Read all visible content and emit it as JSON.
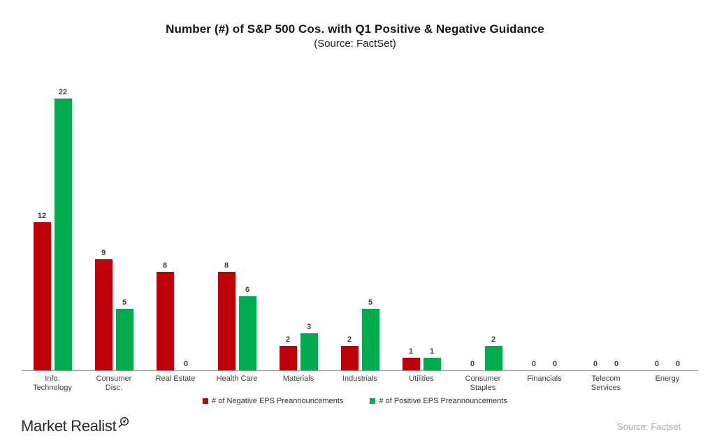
{
  "chart_data": {
    "type": "bar",
    "title": "Number (#) of S&P 500 Cos. with Q1 Positive & Negative Guidance",
    "subtitle": "(Source: FactSet)",
    "categories": [
      "Info. Technology",
      "Consumer Disc.",
      "Real Estate",
      "Health Care",
      "Materials",
      "Industrials",
      "Utilities",
      "Consumer Staples",
      "Financials",
      "Telecom Services",
      "Energy"
    ],
    "series": [
      {
        "name": "# of Negative EPS Preannouncements",
        "color": "#c00008",
        "values": [
          12,
          9,
          8,
          8,
          2,
          2,
          1,
          0,
          0,
          0,
          0
        ]
      },
      {
        "name": "# of Positive EPS Preannouncements",
        "color": "#00ab50",
        "values": [
          22,
          5,
          0,
          6,
          3,
          5,
          1,
          2,
          0,
          0,
          0
        ]
      }
    ],
    "ylim": [
      0,
      22
    ],
    "grid": false,
    "data_labels": true,
    "legend_position": "bottom"
  },
  "footer": {
    "logo_text": "Market Realist",
    "source_text": "Source: Factset"
  }
}
